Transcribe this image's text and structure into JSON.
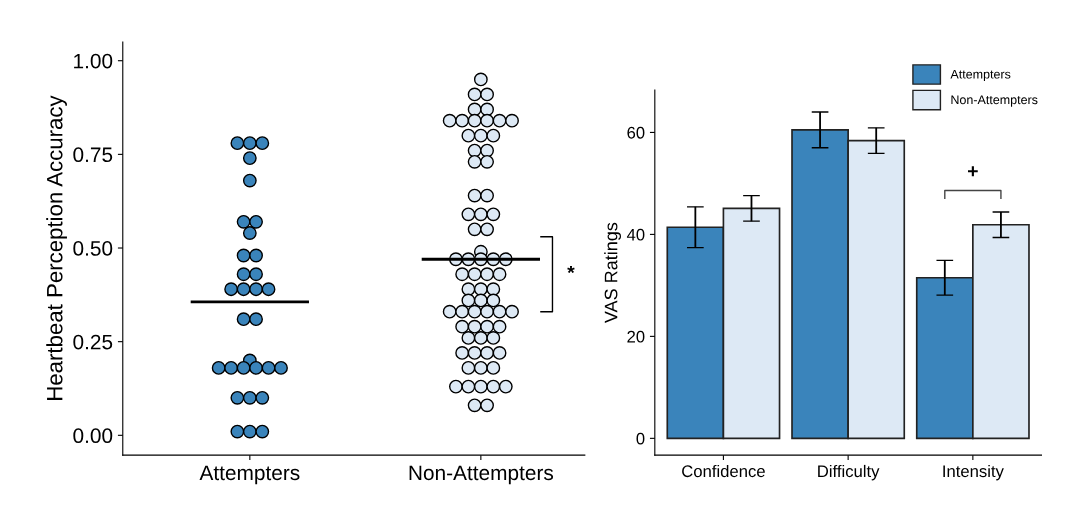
{
  "chart_data": [
    {
      "type": "scatter",
      "ylabel": "Heartbeat Perception Accuracy",
      "categories": [
        "Attempters",
        "Non-Attempters"
      ],
      "ylim": [
        -0.053,
        1.05
      ],
      "yticks": [
        {
          "value": 0,
          "label": "0.00"
        },
        {
          "value": 0.25,
          "label": "0.25"
        },
        {
          "value": 0.5,
          "label": "0.50"
        },
        {
          "value": 0.75,
          "label": "0.75"
        },
        {
          "value": 1,
          "label": "1.00"
        }
      ],
      "grid": false,
      "marker": "circle",
      "series": [
        {
          "color": "#3a84bb",
          "x": [
            "Attempters",
            "Attempters",
            "Attempters",
            "Attempters",
            "Attempters",
            "Attempters",
            "Attempters",
            "Attempters",
            "Attempters",
            "Attempters",
            "Attempters",
            "Attempters",
            "Attempters",
            "Attempters",
            "Attempters",
            "Attempters",
            "Attempters",
            "Attempters",
            "Attempters",
            "Attempters",
            "Attempters",
            "Attempters",
            "Attempters",
            "Attempters",
            "Attempters",
            "Attempters",
            "Attempters",
            "Attempters",
            "Attempters",
            "Attempters",
            "Attempters"
          ],
          "values": [
            0.78,
            0.78,
            0.78,
            0.74,
            0.68,
            0.57,
            0.57,
            0.54,
            0.48,
            0.48,
            0.43,
            0.43,
            0.39,
            0.39,
            0.39,
            0.39,
            0.31,
            0.31,
            0.2,
            0.18,
            0.18,
            0.18,
            0.18,
            0.18,
            0.18,
            0.1,
            0.1,
            0.1,
            0.01,
            0.01,
            0.01
          ]
        },
        {
          "color": "#dde9f5",
          "x": [
            "Non-Attempters",
            "Non-Attempters",
            "Non-Attempters",
            "Non-Attempters",
            "Non-Attempters",
            "Non-Attempters",
            "Non-Attempters",
            "Non-Attempters",
            "Non-Attempters",
            "Non-Attempters",
            "Non-Attempters",
            "Non-Attempters",
            "Non-Attempters",
            "Non-Attempters",
            "Non-Attempters",
            "Non-Attempters",
            "Non-Attempters",
            "Non-Attempters",
            "Non-Attempters",
            "Non-Attempters",
            "Non-Attempters",
            "Non-Attempters",
            "Non-Attempters",
            "Non-Attempters",
            "Non-Attempters",
            "Non-Attempters",
            "Non-Attempters",
            "Non-Attempters",
            "Non-Attempters",
            "Non-Attempters",
            "Non-Attempters",
            "Non-Attempters",
            "Non-Attempters",
            "Non-Attempters",
            "Non-Attempters",
            "Non-Attempters",
            "Non-Attempters",
            "Non-Attempters",
            "Non-Attempters",
            "Non-Attempters",
            "Non-Attempters",
            "Non-Attempters",
            "Non-Attempters",
            "Non-Attempters",
            "Non-Attempters",
            "Non-Attempters",
            "Non-Attempters",
            "Non-Attempters",
            "Non-Attempters",
            "Non-Attempters",
            "Non-Attempters",
            "Non-Attempters",
            "Non-Attempters",
            "Non-Attempters",
            "Non-Attempters",
            "Non-Attempters",
            "Non-Attempters",
            "Non-Attempters",
            "Non-Attempters",
            "Non-Attempters",
            "Non-Attempters",
            "Non-Attempters",
            "Non-Attempters",
            "Non-Attempters",
            "Non-Attempters",
            "Non-Attempters",
            "Non-Attempters",
            "Non-Attempters"
          ],
          "values": [
            0.95,
            0.91,
            0.91,
            0.87,
            0.87,
            0.84,
            0.84,
            0.84,
            0.84,
            0.84,
            0.84,
            0.8,
            0.8,
            0.8,
            0.76,
            0.76,
            0.73,
            0.73,
            0.64,
            0.64,
            0.59,
            0.59,
            0.59,
            0.55,
            0.55,
            0.49,
            0.47,
            0.47,
            0.47,
            0.47,
            0.47,
            0.43,
            0.43,
            0.43,
            0.43,
            0.39,
            0.39,
            0.39,
            0.36,
            0.36,
            0.36,
            0.33,
            0.33,
            0.33,
            0.33,
            0.33,
            0.33,
            0.29,
            0.29,
            0.29,
            0.29,
            0.26,
            0.26,
            0.26,
            0.22,
            0.22,
            0.22,
            0.22,
            0.18,
            0.18,
            0.18,
            0.13,
            0.13,
            0.13,
            0.13,
            0.13,
            0.08,
            0.08
          ]
        }
      ],
      "ref_lines": [
        {
          "axis": "y",
          "value": 0.356,
          "color": "#000000"
        },
        {
          "axis": "y",
          "value": 0.47,
          "color": "#000000"
        }
      ],
      "annotations": [
        "*"
      ]
    },
    {
      "type": "bar",
      "ylabel": "VAS Ratings",
      "categories": [
        "Confidence",
        "Difficulty",
        "Intensity"
      ],
      "ylim": [
        -3.3,
        68.3
      ],
      "yticks": [
        0,
        20,
        40,
        60
      ],
      "grid": false,
      "legend": "top right",
      "series": [
        {
          "name": "Attempters",
          "color": "#3a84bb",
          "values": [
            41.4,
            60.5,
            31.5
          ],
          "errors": [
            4.0,
            3.5,
            3.4
          ]
        },
        {
          "name": "Non-Attempters",
          "color": "#dde9f5",
          "values": [
            45.1,
            58.4,
            41.9
          ],
          "errors": [
            2.5,
            2.5,
            2.5
          ]
        }
      ],
      "annotations": [
        "+"
      ]
    }
  ]
}
